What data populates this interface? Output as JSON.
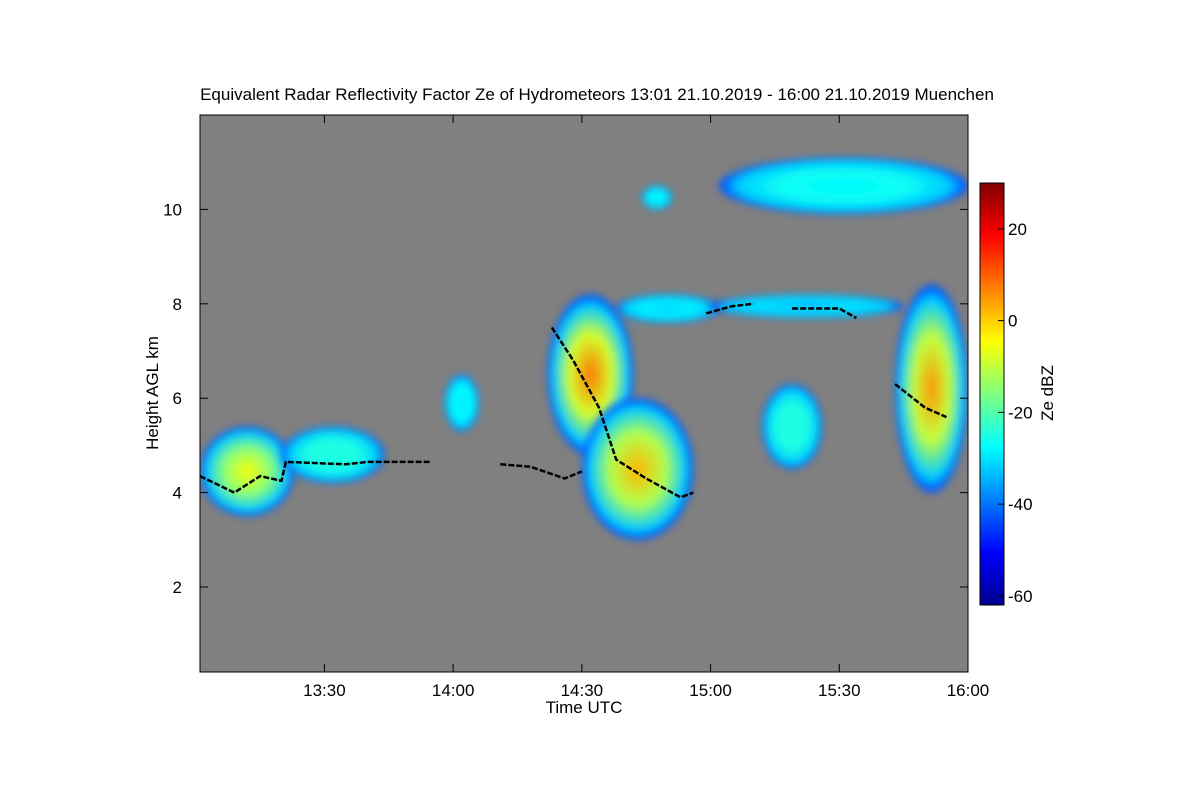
{
  "chart_data": {
    "type": "time-height",
    "title": "Equivalent Radar Reflectivity Factor Ze of Hydrometeors   13:01 21.10.2019 - 16:00 21.10.2019 Muenchen",
    "x_label": "Time UTC",
    "y_label": "Height AGL km",
    "colorbar_label": "Ze dBZ",
    "background": "#808080",
    "xlim": [
      781,
      960
    ],
    "xticks": [
      {
        "value": 810,
        "label": "13:30"
      },
      {
        "value": 840,
        "label": "14:00"
      },
      {
        "value": 870,
        "label": "14:30"
      },
      {
        "value": 900,
        "label": "15:00"
      },
      {
        "value": 930,
        "label": "15:30"
      },
      {
        "value": 960,
        "label": "16:00"
      }
    ],
    "ylim": [
      0.2,
      12
    ],
    "yticks": [
      2,
      4,
      6,
      8,
      10
    ],
    "clim": [
      -62,
      30
    ],
    "cticks": [
      -60,
      -40,
      -20,
      0,
      20
    ],
    "echoes": [
      {
        "t": [
          781,
          803
        ],
        "h": [
          3.5,
          5.4
        ],
        "ze": -5
      },
      {
        "t": [
          800,
          824
        ],
        "h": [
          4.2,
          5.4
        ],
        "ze": -25
      },
      {
        "t": [
          838,
          846
        ],
        "h": [
          5.3,
          6.5
        ],
        "ze": -30
      },
      {
        "t": [
          862,
          882
        ],
        "h": [
          4.8,
          8.2
        ],
        "ze": 8
      },
      {
        "t": [
          870,
          896
        ],
        "h": [
          3.0,
          6.0
        ],
        "ze": 2
      },
      {
        "t": [
          878,
          902
        ],
        "h": [
          7.6,
          8.2
        ],
        "ze": -32
      },
      {
        "t": [
          900,
          945
        ],
        "h": [
          7.7,
          8.2
        ],
        "ze": -35
      },
      {
        "t": [
          912,
          926
        ],
        "h": [
          4.5,
          6.3
        ],
        "ze": -25
      },
      {
        "t": [
          943,
          960
        ],
        "h": [
          4.0,
          8.4
        ],
        "ze": 5
      },
      {
        "t": [
          884,
          891
        ],
        "h": [
          10.0,
          10.5
        ],
        "ze": -30
      },
      {
        "t": [
          902,
          960
        ],
        "h": [
          9.9,
          11.1
        ],
        "ze": -28
      }
    ],
    "bright_band": {
      "x": [
        781,
        789,
        795,
        800,
        801,
        815,
        820,
        835,
        null,
        851,
        858,
        866,
        870,
        null,
        863,
        868,
        874,
        878,
        885,
        893,
        896,
        null,
        899,
        905,
        910,
        null,
        919,
        930,
        934,
        null,
        943,
        950,
        955
      ],
      "y": [
        4.35,
        4.0,
        4.35,
        4.25,
        4.65,
        4.6,
        4.65,
        4.65,
        null,
        4.6,
        4.55,
        4.3,
        4.45,
        null,
        7.5,
        6.8,
        5.8,
        4.7,
        4.3,
        3.9,
        4.0,
        null,
        7.8,
        7.95,
        8.0,
        null,
        7.9,
        7.9,
        7.7,
        null,
        6.3,
        5.8,
        5.6
      ]
    }
  }
}
